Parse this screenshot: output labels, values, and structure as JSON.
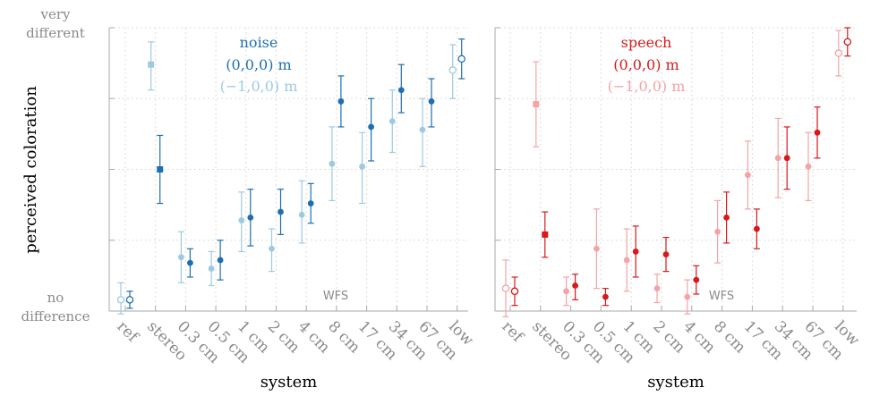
{
  "chart_data": [
    {
      "type": "scatter",
      "panel": "noise",
      "categories": [
        "ref",
        "stereo",
        "0.3 cm",
        "0.5 cm",
        "1 cm",
        "2 cm",
        "4 cm",
        "8 cm",
        "17 cm",
        "34 cm",
        "67 cm",
        "low"
      ],
      "xlabel": "system",
      "ylabel": "perceived coloration",
      "ylim": [
        0,
        1
      ],
      "y_tick_labels": {
        "top": [
          "very",
          "different"
        ],
        "bottom": [
          "no",
          "difference"
        ]
      },
      "grid": true,
      "legend": {
        "placement": "top-center",
        "title": "noise",
        "entries": [
          "(0,0,0) m",
          "(−1,0,0) m"
        ]
      },
      "annotation": "WFS",
      "series": [
        {
          "name": "(0,0,0) m",
          "color": "#1f6fb0",
          "values": [
            0.04,
            0.5,
            0.17,
            0.18,
            0.33,
            0.35,
            0.38,
            0.74,
            0.65,
            0.78,
            0.74,
            0.89
          ],
          "err_low": [
            0.03,
            0.12,
            0.05,
            0.07,
            0.1,
            0.08,
            0.07,
            0.09,
            0.12,
            0.08,
            0.09,
            0.07
          ],
          "err_high": [
            0.03,
            0.12,
            0.05,
            0.07,
            0.1,
            0.08,
            0.07,
            0.09,
            0.1,
            0.09,
            0.08,
            0.07
          ],
          "markers": [
            "circle-open",
            "square",
            "circle",
            "circle",
            "circle",
            "circle",
            "circle",
            "circle",
            "circle",
            "circle",
            "circle",
            "circle-open"
          ]
        },
        {
          "name": "(−1,0,0) m",
          "color": "#9ecae1",
          "values": [
            0.04,
            0.87,
            0.19,
            0.15,
            0.32,
            0.22,
            0.34,
            0.52,
            0.51,
            0.67,
            0.64,
            0.85
          ],
          "err_low": [
            0.05,
            0.09,
            0.09,
            0.06,
            0.11,
            0.08,
            0.1,
            0.13,
            0.13,
            0.11,
            0.13,
            0.1
          ],
          "err_high": [
            0.06,
            0.08,
            0.09,
            0.06,
            0.1,
            0.07,
            0.12,
            0.13,
            0.12,
            0.11,
            0.11,
            0.09
          ],
          "markers": [
            "circle-open",
            "square",
            "circle",
            "circle",
            "circle",
            "circle",
            "circle",
            "circle",
            "circle",
            "circle",
            "circle",
            "circle-open"
          ]
        }
      ]
    },
    {
      "type": "scatter",
      "panel": "speech",
      "categories": [
        "ref",
        "stereo",
        "0.3 cm",
        "0.5 cm",
        "1 cm",
        "2 cm",
        "4 cm",
        "8 cm",
        "17 cm",
        "34 cm",
        "67 cm",
        "low"
      ],
      "xlabel": "system",
      "ylim": [
        0,
        1
      ],
      "grid": true,
      "legend": {
        "placement": "top-center",
        "title": "speech",
        "entries": [
          "(0,0,0) m",
          "(−1,0,0) m"
        ]
      },
      "annotation": "WFS",
      "series": [
        {
          "name": "(0,0,0) m",
          "color": "#d7191c",
          "values": [
            0.07,
            0.27,
            0.09,
            0.05,
            0.21,
            0.2,
            0.11,
            0.33,
            0.29,
            0.54,
            0.63,
            0.95
          ],
          "err_low": [
            0.05,
            0.08,
            0.05,
            0.03,
            0.09,
            0.06,
            0.05,
            0.09,
            0.07,
            0.11,
            0.09,
            0.05
          ],
          "err_high": [
            0.05,
            0.08,
            0.04,
            0.03,
            0.09,
            0.06,
            0.05,
            0.09,
            0.07,
            0.11,
            0.09,
            0.05
          ],
          "markers": [
            "circle-open",
            "square",
            "circle",
            "circle",
            "circle",
            "circle",
            "circle",
            "circle",
            "circle",
            "circle",
            "circle",
            "circle-open"
          ]
        },
        {
          "name": "(−1,0,0) m",
          "color": "#f4a3a6",
          "values": [
            0.08,
            0.73,
            0.07,
            0.22,
            0.18,
            0.08,
            0.05,
            0.28,
            0.48,
            0.54,
            0.51,
            0.91
          ],
          "err_low": [
            0.1,
            0.15,
            0.05,
            0.14,
            0.11,
            0.05,
            0.06,
            0.11,
            0.12,
            0.14,
            0.12,
            0.08
          ],
          "err_high": [
            0.1,
            0.15,
            0.05,
            0.14,
            0.11,
            0.05,
            0.06,
            0.11,
            0.12,
            0.14,
            0.12,
            0.08
          ],
          "markers": [
            "circle-open",
            "square",
            "circle",
            "circle",
            "circle",
            "circle",
            "circle",
            "circle",
            "circle",
            "circle",
            "circle",
            "circle-open"
          ]
        }
      ]
    }
  ]
}
